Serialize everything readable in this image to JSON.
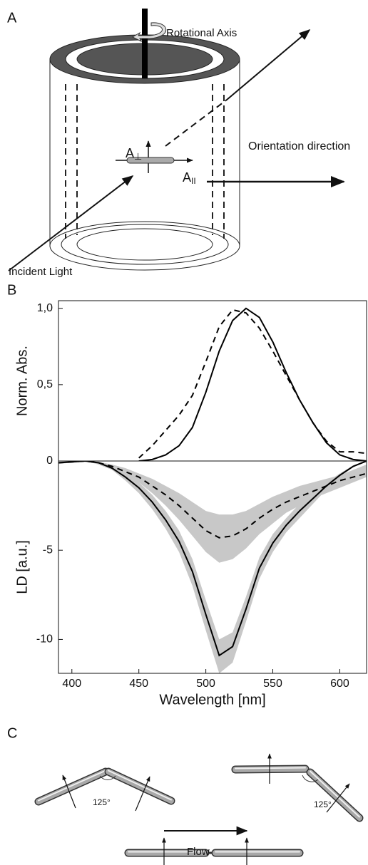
{
  "panels": {
    "a": "A",
    "b": "B",
    "c": "C"
  },
  "diagram_a": {
    "rotational_axis": "Rotational Axis",
    "a_perp": {
      "base": "A",
      "sub": "⊥"
    },
    "a_par": {
      "base": "A",
      "sub": "II"
    },
    "orientation": "Orientation direction",
    "incident": "Incident Light"
  },
  "diagram_c": {
    "angle_left": "125°",
    "angle_right": "125°",
    "flow": "Flow"
  },
  "chart_data": [
    {
      "type": "line",
      "y_label": "Norm. Abs.",
      "x": [
        390,
        400,
        410,
        420,
        430,
        440,
        450,
        460,
        470,
        480,
        490,
        500,
        510,
        520,
        530,
        540,
        550,
        560,
        570,
        580,
        590,
        600,
        610,
        620
      ],
      "xlim": [
        390,
        620
      ],
      "ylim": [
        0,
        1.05
      ],
      "yticks": [
        0,
        {
          "value": 0.5,
          "label": "0,5"
        },
        {
          "value": 1,
          "label": "1,0"
        }
      ],
      "series": [
        {
          "color": "#000000",
          "style": "solid",
          "values": [
            null,
            null,
            null,
            null,
            null,
            null,
            0,
            0.01,
            0.04,
            0.1,
            0.22,
            0.45,
            0.72,
            0.92,
            1.0,
            0.94,
            0.78,
            0.58,
            0.4,
            0.25,
            0.12,
            0.04,
            0.01,
            0
          ]
        },
        {
          "color": "#000000",
          "style": "dashed",
          "values": [
            null,
            null,
            null,
            null,
            null,
            null,
            0.02,
            0.1,
            0.2,
            0.3,
            0.43,
            0.65,
            0.88,
            0.99,
            0.97,
            0.87,
            0.72,
            0.56,
            0.4,
            0.25,
            0.13,
            0.06,
            0.06,
            0.05
          ]
        }
      ]
    },
    {
      "type": "line",
      "y_label": "LD [a.u.]",
      "x_label": "Wavelength [nm]",
      "x": [
        390,
        400,
        410,
        420,
        430,
        440,
        450,
        460,
        470,
        480,
        490,
        500,
        510,
        520,
        530,
        540,
        550,
        560,
        570,
        580,
        590,
        600,
        610,
        620
      ],
      "xlim": [
        390,
        620
      ],
      "ylim": [
        -11.9,
        0
      ],
      "xticks": [
        400,
        450,
        500,
        550,
        600
      ],
      "yticks": [
        -10,
        -5
      ],
      "bands": [
        {
          "color": "#c8c8c8",
          "upper": [
            -0.05,
            0,
            0,
            -0.05,
            -0.3,
            -0.7,
            -1.2,
            -1.9,
            -2.8,
            -3.9,
            -5.5,
            -7.8,
            -10.0,
            -9.6,
            -7.6,
            -5.4,
            -4.1,
            -3.2,
            -2.4,
            -1.8,
            -1.2,
            -0.7,
            -0.25,
            0
          ],
          "lower": [
            -0.15,
            -0.1,
            0,
            -0.2,
            -0.5,
            -1.1,
            -1.8,
            -2.7,
            -3.8,
            -5.1,
            -7.0,
            -9.5,
            -11.9,
            -11.3,
            -9.0,
            -6.6,
            -5.1,
            -4.0,
            -3.2,
            -2.4,
            -1.6,
            -0.9,
            -0.35,
            0
          ]
        },
        {
          "color": "#c8c8c8",
          "upper": [
            -0.05,
            0,
            0,
            -0.05,
            -0.2,
            -0.4,
            -0.7,
            -1.0,
            -1.4,
            -1.8,
            -2.3,
            -2.8,
            -3.0,
            -3.0,
            -2.8,
            -2.4,
            -2.0,
            -1.7,
            -1.4,
            -1.2,
            -1.0,
            -0.8,
            -0.5,
            -0.2
          ],
          "lower": [
            -0.15,
            -0.1,
            0,
            -0.15,
            -0.4,
            -0.8,
            -1.2,
            -1.8,
            -2.5,
            -3.3,
            -4.2,
            -5.1,
            -5.7,
            -5.5,
            -4.9,
            -4.1,
            -3.5,
            -2.9,
            -2.5,
            -2.1,
            -1.8,
            -1.5,
            -1.2,
            -0.9
          ]
        }
      ],
      "series": [
        {
          "color": "#000000",
          "style": "solid",
          "values": [
            -0.1,
            -0.05,
            0,
            -0.1,
            -0.4,
            -0.9,
            -1.5,
            -2.3,
            -3.3,
            -4.5,
            -6.2,
            -8.6,
            -10.9,
            -10.4,
            -8.3,
            -6.0,
            -4.6,
            -3.6,
            -2.8,
            -2.1,
            -1.4,
            -0.8,
            -0.3,
            0
          ]
        },
        {
          "color": "#000000",
          "style": "dashed",
          "values": [
            -0.1,
            -0.05,
            0,
            -0.1,
            -0.3,
            -0.6,
            -0.9,
            -1.4,
            -1.9,
            -2.5,
            -3.2,
            -3.9,
            -4.3,
            -4.2,
            -3.8,
            -3.2,
            -2.7,
            -2.3,
            -2.0,
            -1.7,
            -1.4,
            -1.1,
            -0.9,
            -0.7
          ]
        }
      ]
    }
  ]
}
